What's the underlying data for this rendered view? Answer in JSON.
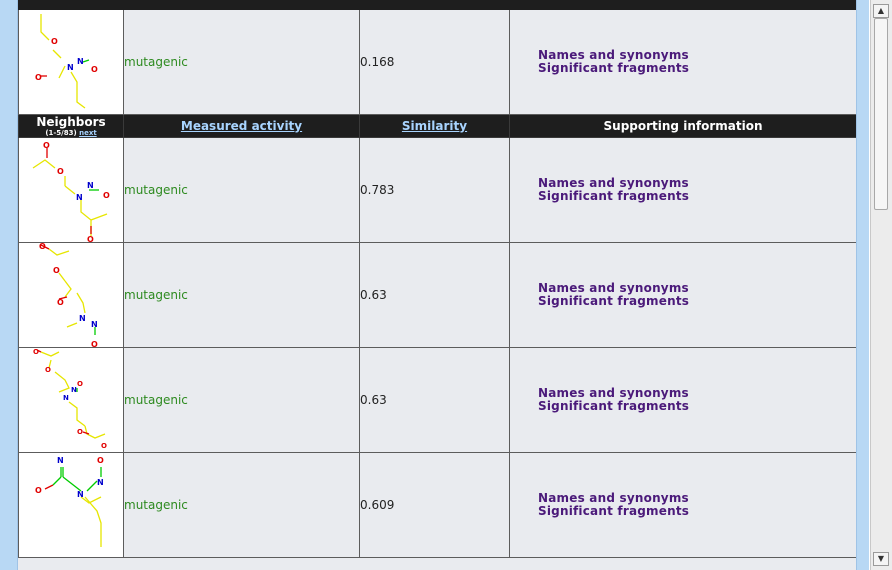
{
  "table": {
    "headers": {
      "neighbors_title": "Neighbors",
      "neighbors_range": "(1-5/83)",
      "neighbors_next": "next",
      "measured_activity": "Measured activity",
      "similarity": "Similarity",
      "supporting_information": "Supporting information"
    },
    "query_row": {
      "activity": "mutagenic",
      "similarity": "0.168",
      "link_names": "Names and synonyms",
      "link_fragments": "Significant fragments"
    },
    "rows": [
      {
        "activity": "mutagenic",
        "similarity": "0.783",
        "link_names": "Names and synonyms",
        "link_fragments": "Significant fragments"
      },
      {
        "activity": "mutagenic",
        "similarity": "0.63",
        "link_names": "Names and synonyms",
        "link_fragments": "Significant fragments"
      },
      {
        "activity": "mutagenic",
        "similarity": "0.63",
        "link_names": "Names and synonyms",
        "link_fragments": "Significant fragments"
      },
      {
        "activity": "mutagenic",
        "similarity": "0.609",
        "link_names": "Names and synonyms",
        "link_fragments": "Significant fragments"
      }
    ]
  },
  "colors": {
    "header_bg": "#1e1e1e",
    "activity_text": "#2d8a1f",
    "link_text": "#4b1a7a",
    "bond_carbon": "#e6e600",
    "atom_oxygen": "#e00000",
    "atom_nitrogen": "#0000cc",
    "bond_nitroso": "#00cc00"
  },
  "icons": [
    "scroll-up-arrow",
    "scroll-down-arrow",
    "molecule-structure"
  ]
}
